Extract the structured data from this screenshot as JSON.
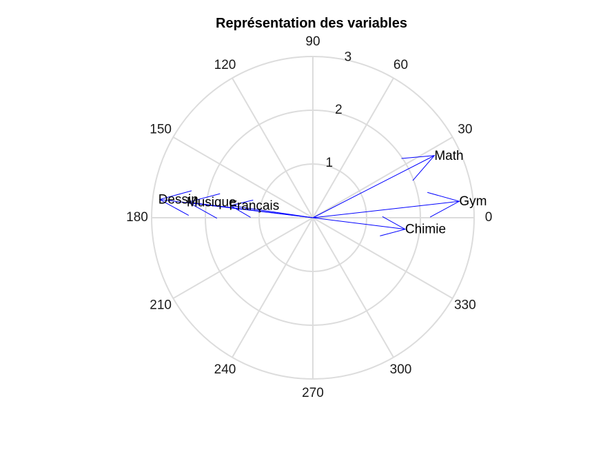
{
  "chart_data": {
    "type": "polar-compass",
    "title": "Représentation des variables",
    "radial_ticks": [
      1,
      2,
      3
    ],
    "rmax": 3,
    "angle_ticks": [
      0,
      30,
      60,
      90,
      120,
      150,
      180,
      210,
      240,
      270,
      300,
      330
    ],
    "angle_unit": "degrees",
    "grid": true,
    "series": [
      {
        "label": "Math",
        "angle": 27.1,
        "r": 2.54
      },
      {
        "label": "Gym",
        "angle": 6.4,
        "r": 2.74
      },
      {
        "label": "Chimie",
        "angle": -7.1,
        "r": 1.73
      },
      {
        "label": "Dessin",
        "angle": 173.2,
        "r": 2.87
      },
      {
        "label": "Musique",
        "angle": 172.9,
        "r": 2.34
      },
      {
        "label": "Français",
        "angle": 171.6,
        "r": 1.55
      }
    ],
    "colors": {
      "arrow": "#0000ff",
      "grid": "#dcdcdc",
      "text": "#1a1a1a"
    }
  }
}
